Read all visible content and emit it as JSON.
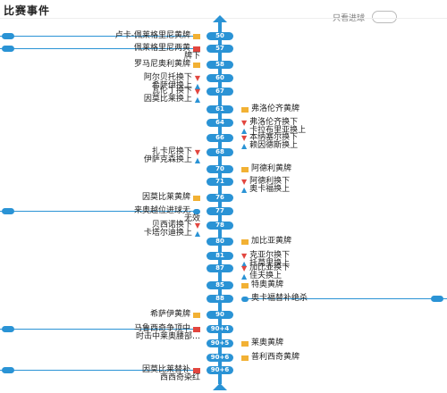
{
  "header": {
    "title": "比赛事件",
    "filter_label": "只看进球"
  },
  "events": [
    {
      "minute": "50",
      "side": "left",
      "lines": [
        "卢卡-佩莱格里尼黄牌"
      ],
      "marker": "yellow",
      "selected": true
    },
    {
      "minute": "57",
      "side": "left",
      "lines": [
        "佩莱格里尼两黄",
        "牌下"
      ],
      "marker": "red",
      "selected": true
    },
    {
      "minute": "58",
      "side": "left",
      "lines": [
        "罗马尼奥利黄牌"
      ],
      "marker": "yellow"
    },
    {
      "minute": "60",
      "side": "left",
      "lines": [
        "阿尔贝托换下",
        "希萨伊换上"
      ],
      "marker": "sub"
    },
    {
      "minute": "67",
      "side": "left",
      "lines": [
        "瓦伦丁换下",
        "因莫比莱换上"
      ],
      "marker": "sub"
    },
    {
      "minute": "61",
      "side": "right",
      "lines": [
        "弗洛伦齐黄牌"
      ],
      "marker": "yellow"
    },
    {
      "minute": "64",
      "side": "right",
      "lines": [
        "弗洛伦齐换下",
        "卡拉布里亚换上"
      ],
      "marker": "sub"
    },
    {
      "minute": "66",
      "side": "right",
      "lines": [
        "本纳塞尔换下",
        "赖因德斯换上"
      ],
      "marker": "sub"
    },
    {
      "minute": "68",
      "side": "left",
      "lines": [
        "扎卡尼换下",
        "伊萨克森换上"
      ],
      "marker": "sub"
    },
    {
      "minute": "70",
      "side": "right",
      "lines": [
        "阿德利黄牌"
      ],
      "marker": "yellow"
    },
    {
      "minute": "71",
      "side": "right",
      "lines": [
        "阿德利换下",
        "奥卡福换上"
      ],
      "marker": "sub"
    },
    {
      "minute": "76",
      "side": "left",
      "lines": [
        "因莫比莱黄牌"
      ],
      "marker": "yellow"
    },
    {
      "minute": "77",
      "side": "left",
      "lines": [
        "来奥越位进球无",
        "无效"
      ],
      "marker": "var",
      "selected": true
    },
    {
      "minute": "78",
      "side": "left",
      "lines": [
        "贝西诺换下",
        "卡塔尔迪换上"
      ],
      "marker": "sub"
    },
    {
      "minute": "80",
      "side": "right",
      "lines": [
        "加比亚黄牌"
      ],
      "marker": "yellow"
    },
    {
      "minute": "81",
      "side": "right",
      "lines": [
        "克亚尔换下",
        "托莫里换上"
      ],
      "marker": "sub"
    },
    {
      "minute": "87",
      "side": "right",
      "lines": [
        "加比亚换下",
        "佳夫换上"
      ],
      "marker": "sub"
    },
    {
      "minute": "85",
      "side": "right",
      "lines": [
        "特奥黄牌"
      ],
      "marker": "yellow"
    },
    {
      "minute": "88",
      "side": "right",
      "lines": [
        "奥卡福替补绝杀"
      ],
      "marker": "goal",
      "selected": true
    },
    {
      "minute": "90",
      "side": "left",
      "lines": [
        "希萨伊黄牌"
      ],
      "marker": "yellow"
    },
    {
      "minute": "90+4",
      "side": "left",
      "lines": [
        "马鲁西奇争顶中",
        "时击中莱奥腰部…"
      ],
      "marker": "red",
      "selected": true
    },
    {
      "minute": "90+5",
      "side": "right",
      "lines": [
        "莱奥黄牌"
      ],
      "marker": "yellow"
    },
    {
      "minute": "90+6",
      "side": "right",
      "lines": [
        "普利西奇黄牌"
      ],
      "marker": "yellow"
    },
    {
      "minute": "90+6",
      "side": "left",
      "lines": [
        "因莫比莱替补",
        "西西奇染红"
      ],
      "marker": "red",
      "selected": true
    }
  ],
  "colors": {
    "accent": "#2a93d5",
    "yellow": "#f2b134",
    "red": "#e2463f"
  }
}
